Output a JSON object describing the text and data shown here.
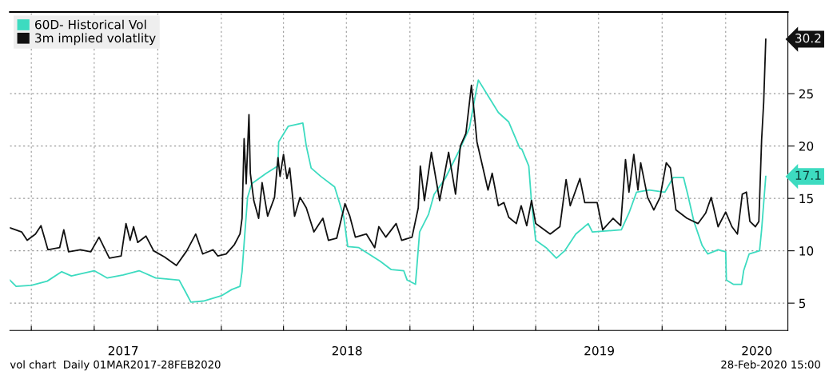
{
  "chart_data": {
    "type": "line",
    "series": [
      {
        "name": "60D- Historical Vol",
        "color": "#3ddbc0",
        "x": [
          "2017-03-01",
          "2017-03-10",
          "2017-04-01",
          "2017-04-24",
          "2017-05-15",
          "2017-05-29",
          "2017-07-01",
          "2017-07-20",
          "2017-08-12",
          "2017-09-04",
          "2017-09-28",
          "2017-11-01",
          "2017-11-10",
          "2017-11-18",
          "2017-12-06",
          "2018-01-01",
          "2018-01-16",
          "2018-01-28",
          "2018-01-31",
          "2018-02-04",
          "2018-02-08",
          "2018-02-14",
          "2018-03-07",
          "2018-03-24",
          "2018-03-25",
          "2018-04-08",
          "2018-04-29",
          "2018-05-04",
          "2018-05-11",
          "2018-05-25",
          "2018-06-14",
          "2018-06-27",
          "2018-07-03",
          "2018-07-19",
          "2018-08-19",
          "2018-09-04",
          "2018-09-22",
          "2018-09-27",
          "2018-10-09",
          "2018-10-15",
          "2018-10-28",
          "2018-11-05",
          "2018-11-21",
          "2018-12-10",
          "2018-12-26",
          "2019-01-05",
          "2019-01-08",
          "2019-01-22",
          "2019-02-06",
          "2019-02-21",
          "2019-03-09",
          "2019-03-12",
          "2019-03-22",
          "2019-03-26",
          "2019-04-01",
          "2019-04-16",
          "2019-05-01",
          "2019-05-13",
          "2019-05-29",
          "2019-06-16",
          "2019-06-22",
          "2019-08-03",
          "2019-08-14",
          "2019-08-25",
          "2019-09-12",
          "2019-10-05",
          "2019-10-17",
          "2019-11-01",
          "2019-11-07",
          "2019-11-16",
          "2019-11-28",
          "2019-12-06",
          "2019-12-21",
          "2020-01-01",
          "2020-01-02",
          "2020-01-12",
          "2020-01-24",
          "2020-01-27",
          "2020-02-04",
          "2020-02-19",
          "2020-02-22",
          "2020-02-28"
        ],
        "values": [
          7.2,
          6.6,
          6.7,
          7.1,
          8.0,
          7.6,
          8.1,
          7.4,
          7.7,
          8.1,
          7.4,
          7.2,
          6.1,
          5.1,
          5.2,
          5.7,
          6.3,
          6.6,
          8.0,
          11.6,
          15.1,
          16.4,
          17.4,
          18.1,
          20.4,
          21.9,
          22.2,
          20.0,
          17.9,
          17.1,
          16.1,
          13.3,
          10.4,
          10.3,
          9.0,
          8.2,
          8.1,
          7.2,
          6.8,
          11.8,
          13.5,
          15.4,
          16.9,
          19.4,
          21.7,
          25.3,
          26.3,
          24.8,
          23.2,
          22.3,
          19.8,
          19.7,
          18.1,
          14.6,
          11.0,
          10.3,
          9.3,
          10.0,
          11.6,
          12.6,
          11.8,
          12.0,
          13.6,
          15.6,
          15.8,
          15.6,
          17.0,
          17.0,
          15.4,
          12.8,
          10.5,
          9.7,
          10.1,
          9.9,
          7.2,
          6.8,
          6.8,
          8.1,
          9.7,
          10.0,
          12.0,
          17.1
        ]
      },
      {
        "name": "3m implied volatlity",
        "color": "#111111",
        "x": [
          "2017-03-01",
          "2017-03-18",
          "2017-03-26",
          "2017-04-07",
          "2017-04-15",
          "2017-04-25",
          "2017-05-12",
          "2017-05-18",
          "2017-05-25",
          "2017-06-11",
          "2017-06-26",
          "2017-07-08",
          "2017-07-23",
          "2017-08-09",
          "2017-08-16",
          "2017-08-22",
          "2017-08-27",
          "2017-09-02",
          "2017-09-14",
          "2017-09-25",
          "2017-10-11",
          "2017-10-28",
          "2017-11-12",
          "2017-11-25",
          "2017-12-05",
          "2017-12-20",
          "2017-12-27",
          "2018-01-08",
          "2018-01-20",
          "2018-01-28",
          "2018-01-31",
          "2018-02-03",
          "2018-02-06",
          "2018-02-10",
          "2018-02-12",
          "2018-02-17",
          "2018-02-24",
          "2018-03-01",
          "2018-03-09",
          "2018-03-19",
          "2018-03-24",
          "2018-03-27",
          "2018-04-01",
          "2018-04-06",
          "2018-04-10",
          "2018-04-17",
          "2018-04-25",
          "2018-05-04",
          "2018-05-15",
          "2018-05-28",
          "2018-06-05",
          "2018-06-17",
          "2018-06-29",
          "2018-07-06",
          "2018-07-14",
          "2018-07-30",
          "2018-08-11",
          "2018-08-17",
          "2018-08-27",
          "2018-09-11",
          "2018-09-19",
          "2018-10-04",
          "2018-10-13",
          "2018-10-16",
          "2018-10-22",
          "2018-11-01",
          "2018-11-13",
          "2018-11-26",
          "2018-12-06",
          "2018-12-13",
          "2018-12-21",
          "2018-12-29",
          "2019-01-02",
          "2019-01-06",
          "2019-01-14",
          "2019-01-22",
          "2019-01-28",
          "2019-02-06",
          "2019-02-14",
          "2019-02-21",
          "2019-03-04",
          "2019-03-11",
          "2019-03-19",
          "2019-03-26",
          "2019-04-01",
          "2019-04-22",
          "2019-05-06",
          "2019-05-15",
          "2019-05-21",
          "2019-06-04",
          "2019-06-11",
          "2019-06-29",
          "2019-07-07",
          "2019-07-22",
          "2019-08-02",
          "2019-08-09",
          "2019-08-14",
          "2019-08-21",
          "2019-08-27",
          "2019-08-31",
          "2019-09-10",
          "2019-09-19",
          "2019-09-28",
          "2019-10-07",
          "2019-10-13",
          "2019-10-21",
          "2019-11-06",
          "2019-11-22",
          "2019-12-03",
          "2019-12-11",
          "2019-12-21",
          "2020-01-01",
          "2020-01-10",
          "2020-01-18",
          "2020-01-25",
          "2020-01-31",
          "2020-02-05",
          "2020-02-13",
          "2020-02-18",
          "2020-02-22",
          "2020-02-25",
          "2020-02-28"
        ],
        "values": [
          12.2,
          11.8,
          11.0,
          11.6,
          12.4,
          10.1,
          10.3,
          12.0,
          9.9,
          10.1,
          9.9,
          11.3,
          9.3,
          9.5,
          12.6,
          11.0,
          12.3,
          10.8,
          11.4,
          10.0,
          9.4,
          8.6,
          10.0,
          11.6,
          9.7,
          10.1,
          9.5,
          9.7,
          10.6,
          11.6,
          13.1,
          20.7,
          16.4,
          23.0,
          17.4,
          14.8,
          13.1,
          16.5,
          13.3,
          15.1,
          18.9,
          17.1,
          19.2,
          16.9,
          17.9,
          13.3,
          15.1,
          14.1,
          11.8,
          13.1,
          11.0,
          11.2,
          14.5,
          13.3,
          11.3,
          11.6,
          10.3,
          12.3,
          11.3,
          12.6,
          11.0,
          11.3,
          14.1,
          18.1,
          14.8,
          19.4,
          14.8,
          19.4,
          15.4,
          20.0,
          21.2,
          25.8,
          23.2,
          20.4,
          18.1,
          15.8,
          17.4,
          14.3,
          14.6,
          13.2,
          12.6,
          14.3,
          12.4,
          14.8,
          12.6,
          11.6,
          12.3,
          16.8,
          14.3,
          16.9,
          14.6,
          14.6,
          12.0,
          13.1,
          12.4,
          18.7,
          15.6,
          19.2,
          15.8,
          18.4,
          15.1,
          13.9,
          15.1,
          18.4,
          17.9,
          13.9,
          13.1,
          12.6,
          13.6,
          15.1,
          12.3,
          13.7,
          12.3,
          11.6,
          15.4,
          15.6,
          12.8,
          12.3,
          12.8,
          20.6,
          24.2,
          30.2
        ]
      }
    ],
    "xlim": [
      "2017-03-01",
      "2020-03-31"
    ],
    "xticks": [
      {
        "value": "2017-04-01",
        "label": null
      },
      {
        "value": "2017-07-01",
        "label": null
      },
      {
        "value": "2017-10-01",
        "label": null
      },
      {
        "value": "2018-01-01",
        "label": null
      },
      {
        "value": "2018-04-01",
        "label": null
      },
      {
        "value": "2018-07-01",
        "label": null
      },
      {
        "value": "2018-10-01",
        "label": null
      },
      {
        "value": "2019-01-01",
        "label": null
      },
      {
        "value": "2019-04-01",
        "label": null
      },
      {
        "value": "2019-07-01",
        "label": null
      },
      {
        "value": "2019-10-01",
        "label": null
      },
      {
        "value": "2020-01-01",
        "label": null
      },
      {
        "value": "2017-08-12",
        "label": "2017"
      },
      {
        "value": "2018-07-02",
        "label": "2018"
      },
      {
        "value": "2019-07-02",
        "label": "2019"
      },
      {
        "value": "2020-02-15",
        "label": "2020"
      }
    ],
    "ylim": [
      2.4,
      32.8
    ],
    "yticks": [
      5,
      10,
      15,
      20,
      25
    ],
    "grid": true,
    "legend": "top left",
    "line_style": "solid",
    "marker": "none",
    "annotations": [
      {
        "text": "30.2",
        "x": "2020-02-28",
        "y": 30.2
      },
      {
        "text": "17.1",
        "x": "2020-02-28",
        "y": 17.1
      },
      "vol chart  Daily 01MAR2017-28FEB2020",
      "28-Feb-2020 15:00"
    ]
  }
}
